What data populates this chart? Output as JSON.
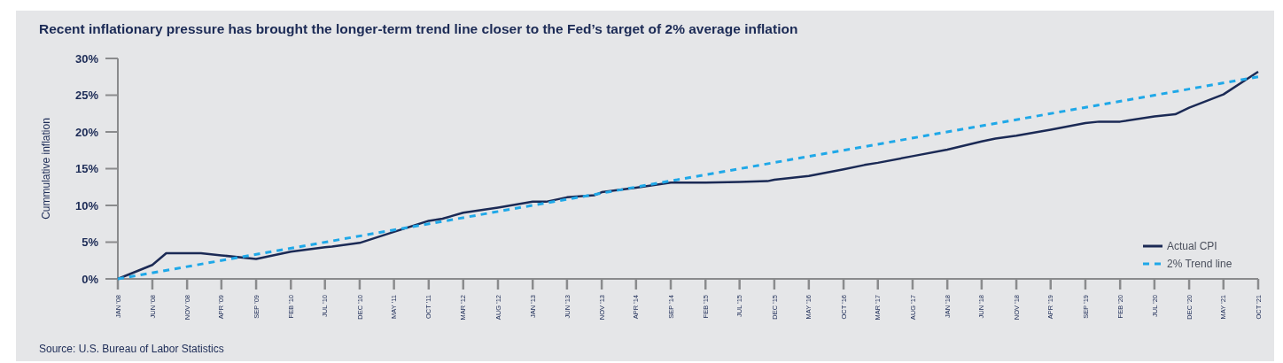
{
  "chart_data": {
    "type": "line",
    "title": "Recent inflationary pressure has brought the longer-term trend line closer to the Fed’s target of 2% average inflation",
    "ylabel": "Cummulative inflation",
    "annotations": [
      "Source: U.S. Bureau of Labor Statistics"
    ],
    "xlim": [
      "2008-01",
      "2021-10"
    ],
    "xticks": [
      {
        "value": "2008-01",
        "label": "JAN '08"
      },
      {
        "value": "2008-06",
        "label": "JUN '08"
      },
      {
        "value": "2008-11",
        "label": "NOV '08"
      },
      {
        "value": "2009-04",
        "label": "APR '09"
      },
      {
        "value": "2009-09",
        "label": "SEP '09"
      },
      {
        "value": "2010-02",
        "label": "FEB '10"
      },
      {
        "value": "2010-07",
        "label": "JUL '10"
      },
      {
        "value": "2010-12",
        "label": "DEC '10"
      },
      {
        "value": "2011-05",
        "label": "MAY '11"
      },
      {
        "value": "2011-10",
        "label": "OCT '11"
      },
      {
        "value": "2012-03",
        "label": "MAR '12"
      },
      {
        "value": "2012-08",
        "label": "AUG '12"
      },
      {
        "value": "2013-01",
        "label": "JAN '13"
      },
      {
        "value": "2013-06",
        "label": "JUN '13"
      },
      {
        "value": "2013-11",
        "label": "NOV '13"
      },
      {
        "value": "2014-04",
        "label": "APR '14"
      },
      {
        "value": "2014-09",
        "label": "SEP '14"
      },
      {
        "value": "2015-02",
        "label": "FEB '15"
      },
      {
        "value": "2015-07",
        "label": "JUL '15"
      },
      {
        "value": "2015-12",
        "label": "DEC '15"
      },
      {
        "value": "2016-05",
        "label": "MAY '16"
      },
      {
        "value": "2016-10",
        "label": "OCT '16"
      },
      {
        "value": "2017-03",
        "label": "MAR '17"
      },
      {
        "value": "2017-08",
        "label": "AUG '17"
      },
      {
        "value": "2018-01",
        "label": "JAN '18"
      },
      {
        "value": "2018-06",
        "label": "JUN '18"
      },
      {
        "value": "2018-11",
        "label": "NOV '18"
      },
      {
        "value": "2019-04",
        "label": "APR '19"
      },
      {
        "value": "2019-09",
        "label": "SEP '19"
      },
      {
        "value": "2020-02",
        "label": "FEB '20"
      },
      {
        "value": "2020-07",
        "label": "JUL '20"
      },
      {
        "value": "2020-12",
        "label": "DEC '20"
      },
      {
        "value": "2021-05",
        "label": "MAY '21"
      },
      {
        "value": "2021-10",
        "label": "OCT '21"
      }
    ],
    "ylim": [
      0,
      30
    ],
    "yticks": [
      {
        "value": 0,
        "label": "0%"
      },
      {
        "value": 5,
        "label": "5%"
      },
      {
        "value": 10,
        "label": "10%"
      },
      {
        "value": 15,
        "label": "15%"
      },
      {
        "value": 20,
        "label": "20%"
      },
      {
        "value": 25,
        "label": "25%"
      },
      {
        "value": 30,
        "label": "30%"
      }
    ],
    "grid": false,
    "legend": "bottom right",
    "series": [
      {
        "name": "Actual CPI",
        "color": "#1b2a55",
        "line_style": "solid",
        "x": [
          "2008-01",
          "2008-06",
          "2008-08",
          "2009-01",
          "2009-04",
          "2009-09",
          "2010-02",
          "2010-07",
          "2010-08",
          "2010-12",
          "2011-05",
          "2011-10",
          "2011-12",
          "2012-03",
          "2012-08",
          "2013-01",
          "2013-03",
          "2013-06",
          "2013-10",
          "2013-11",
          "2014-04",
          "2014-09",
          "2015-02",
          "2015-07",
          "2015-11",
          "2015-12",
          "2016-05",
          "2016-10",
          "2017-01",
          "2017-03",
          "2017-08",
          "2018-01",
          "2018-06",
          "2018-08",
          "2018-11",
          "2019-04",
          "2019-09",
          "2019-11",
          "2020-02",
          "2020-07",
          "2020-10",
          "2020-12",
          "2021-05",
          "2021-10"
        ],
        "values": [
          0,
          1.9,
          3.5,
          3.5,
          3.2,
          2.7,
          3.7,
          4.3,
          4.4,
          4.9,
          6.4,
          7.9,
          8.2,
          9.0,
          9.7,
          10.5,
          10.5,
          11.1,
          11.4,
          11.8,
          12.4,
          13.1,
          13.1,
          13.2,
          13.3,
          13.5,
          14.0,
          14.9,
          15.5,
          15.8,
          16.7,
          17.6,
          18.7,
          19.1,
          19.5,
          20.3,
          21.2,
          21.4,
          21.4,
          22.1,
          22.4,
          23.3,
          25.1,
          28.2
        ]
      },
      {
        "name": "2% Trend line",
        "color": "#1fa8e8",
        "line_style": "dashed",
        "x": [
          "2008-01",
          "2021-10"
        ],
        "values": [
          0,
          27.5
        ]
      }
    ]
  }
}
